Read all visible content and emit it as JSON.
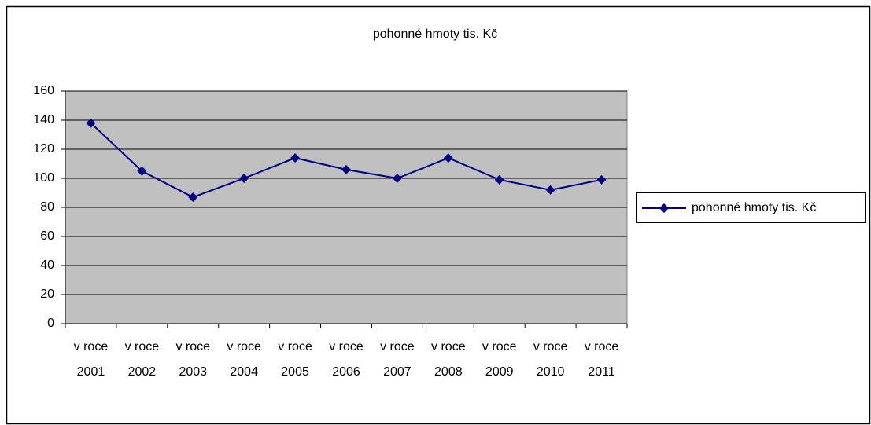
{
  "chart_data": {
    "type": "line",
    "title": "pohonné hmoty tis. Kč",
    "categories": [
      "v roce 2001",
      "v roce 2002",
      "v roce 2003",
      "v roce 2004",
      "v roce 2005",
      "v roce 2006",
      "v roce 2007",
      "v roce 2008",
      "v roce 2009",
      "v roce 2010",
      "v roce 2011"
    ],
    "series": [
      {
        "name": "pohonné hmoty tis. Kč",
        "color": "#000080",
        "values": [
          138,
          105,
          87,
          100,
          114,
          106,
          100,
          114,
          99,
          92,
          99
        ]
      }
    ],
    "ylim": [
      0,
      160
    ],
    "yticks": [
      0,
      20,
      40,
      60,
      80,
      100,
      120,
      140,
      160
    ],
    "grid": true,
    "legend": "right"
  }
}
